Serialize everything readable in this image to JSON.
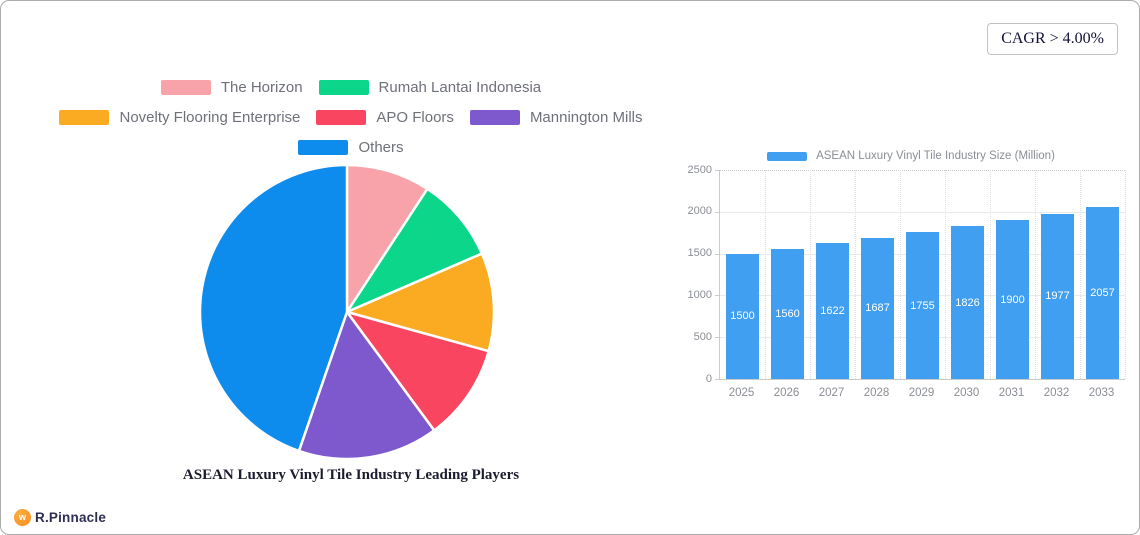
{
  "badge": {
    "text": "CAGR > 4.00%"
  },
  "brand": {
    "name": "R.Pinnacle",
    "icon_glyph": "w",
    "icon_color": "#F68B1F",
    "text_color": "#2E2E55"
  },
  "colors": {
    "card_border": "#ACACAC",
    "legend_text": "#6E7179",
    "axis_text": "#8A8E94",
    "bar_value_text": "#FFFFFF",
    "slice_gap": "#FFFFFF"
  },
  "chart_data": [
    {
      "type": "pie",
      "title": "ASEAN Luxury Vinyl Tile Industry Leading Players",
      "labels": [
        "The Horizon",
        "Rumah Lantai Indonesia",
        "Novelty Flooring Enterprise",
        "APO Floors",
        "Mannington Mills",
        "Others"
      ],
      "values_pct": [
        9.2,
        9.3,
        10.8,
        10.6,
        15.4,
        44.7
      ],
      "colors": [
        "#F7A3A9",
        "#0CD68A",
        "#FBAB21",
        "#F94560",
        "#7D59CD",
        "#0E8CEE"
      ],
      "legend_rows": [
        [
          0,
          1
        ],
        [
          2,
          3,
          4
        ],
        [
          5
        ]
      ],
      "start_angle_deg": 0,
      "direction": "clockwise",
      "slice_gap_color": "#FFFFFF",
      "legend_position": "top"
    },
    {
      "type": "bar",
      "legend_label": "ASEAN Luxury Vinyl Tile Industry Size (Million)",
      "categories": [
        "2025",
        "2026",
        "2027",
        "2028",
        "2029",
        "2030",
        "2031",
        "2032",
        "2033"
      ],
      "values": [
        1500,
        1560,
        1622,
        1687,
        1755,
        1826,
        1900,
        1977,
        2057
      ],
      "bar_color": "#419FF2",
      "value_labels_inside": true,
      "ylim": [
        0,
        2500
      ],
      "ytick_step": 500,
      "yticks": [
        0,
        500,
        1000,
        1500,
        2000,
        2500
      ],
      "grid": true,
      "legend_position": "top"
    }
  ]
}
